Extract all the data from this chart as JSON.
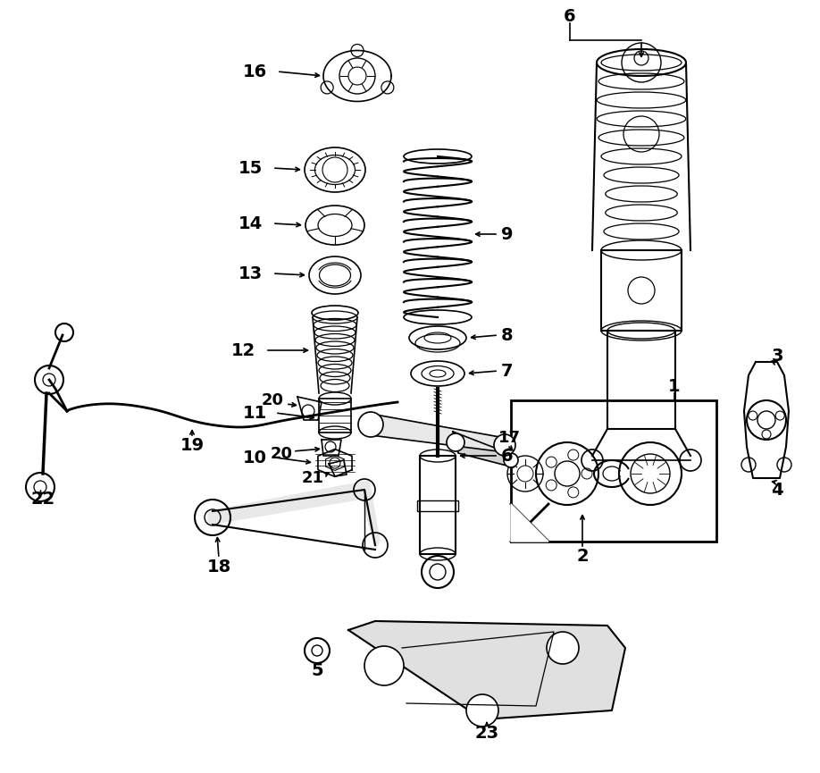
{
  "bg_color": "#ffffff",
  "lc": "#000000",
  "fig_w": 9.18,
  "fig_h": 8.65,
  "dpi": 100
}
